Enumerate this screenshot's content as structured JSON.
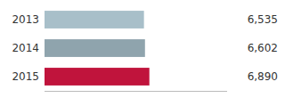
{
  "chart_data": {
    "type": "bar",
    "orientation": "horizontal",
    "categories": [
      "2013",
      "2014",
      "2015"
    ],
    "values": [
      6535,
      6602,
      6890
    ],
    "value_labels": [
      "6,535",
      "6,602",
      "6,890"
    ],
    "colors": [
      "#a8bfc9",
      "#8fa4ad",
      "#c0143c"
    ],
    "xlim": [
      0,
      12000
    ],
    "data_labels": true,
    "tick_labels": "y",
    "grid": false
  }
}
